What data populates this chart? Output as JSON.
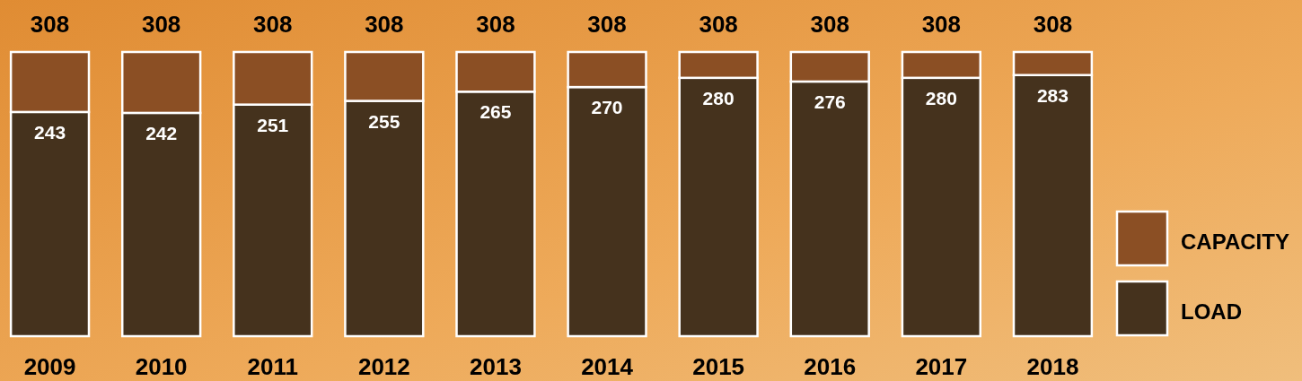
{
  "chart_data": {
    "type": "bar",
    "stacked": true,
    "categories": [
      "2009",
      "2010",
      "2011",
      "2012",
      "2013",
      "2014",
      "2015",
      "2016",
      "2017",
      "2018"
    ],
    "series": [
      {
        "name": "LOAD",
        "color": "#45321d",
        "values": [
          243,
          242,
          251,
          255,
          265,
          270,
          280,
          276,
          280,
          283
        ],
        "value_labels": [
          "243",
          "242",
          "251",
          "255",
          "265",
          "270",
          "280",
          "276",
          "280",
          "283"
        ]
      },
      {
        "name": "CAPACITY",
        "color": "#8b4f24",
        "values": [
          65,
          66,
          57,
          53,
          43,
          38,
          28,
          32,
          28,
          25
        ]
      }
    ],
    "totals": [
      "308",
      "308",
      "308",
      "308",
      "308",
      "308",
      "308",
      "308",
      "308",
      "308"
    ],
    "ylim": [
      0,
      308
    ],
    "tick_labels": "x",
    "legend": "right"
  }
}
